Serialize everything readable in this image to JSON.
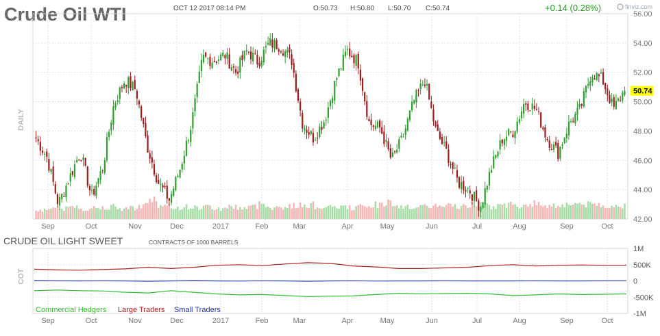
{
  "header": {
    "title": "Crude Oil WTI",
    "date": "OCT 12 2017 08:14 PM",
    "open": "O:50.73",
    "high": "H:50.80",
    "low": "L:50.70",
    "close": "C:50.74",
    "change": "+0.14 (0.28%)",
    "brand": "finviz.com",
    "period_label": "DAILY",
    "last_price": "50.74"
  },
  "cot": {
    "title": "CRUDE OIL LIGHT SWEET",
    "subtitle": "CONTRACTS OF 1000 BARRELS",
    "side_label": "COT",
    "legend": [
      {
        "label": "Commercial Hedgers",
        "color": "#33bb33"
      },
      {
        "label": "Large Traders",
        "color": "#aa2222"
      },
      {
        "label": "Small Traders",
        "color": "#2233aa"
      }
    ]
  },
  "colors": {
    "up": "#2e9e2e",
    "down": "#9e1b1b",
    "vol_up": "#a6dca6",
    "vol_down": "#f4b6b6",
    "grid": "#dddddd",
    "axis_text": "#777777",
    "price_tag": "#ffff00"
  },
  "chart_data": [
    {
      "type": "candlestick",
      "title": "Crude Oil WTI",
      "period": "DAILY",
      "x_tick_labels": [
        "Sep",
        "Oct",
        "Nov",
        "Dec",
        "2017",
        "Feb",
        "Mar",
        "Apr",
        "May",
        "Jun",
        "Jul",
        "Aug",
        "Sep",
        "Oct"
      ],
      "y_ticks": [
        "42.00",
        "44.00",
        "46.00",
        "48.00",
        "50.00",
        "52.00",
        "54.00",
        "56.00"
      ],
      "ylim": [
        42,
        56
      ],
      "series": [
        {
          "name": "price",
          "values": [
            47.5,
            46.2,
            43.0,
            44.8,
            46.6,
            43.5,
            45.5,
            49.8,
            51.5,
            50.8,
            47.0,
            44.5,
            43.3,
            45.5,
            48.5,
            53.0,
            52.8,
            53.2,
            52.0,
            53.5,
            52.7,
            54.0,
            53.8,
            52.9,
            48.5,
            47.5,
            48.8,
            51.5,
            53.5,
            52.7,
            48.5,
            48.2,
            46.0,
            47.5,
            50.0,
            51.5,
            48.0,
            46.5,
            44.5,
            44.0,
            42.8,
            45.5,
            47.5,
            48.0,
            50.0,
            49.5,
            47.5,
            46.5,
            48.5,
            49.5,
            52.0,
            51.5,
            49.5,
            50.8
          ]
        }
      ],
      "last_value": 50.74,
      "grid": true
    },
    {
      "type": "bar",
      "title": "volume",
      "series": [
        {
          "name": "volume",
          "values": [
            0.45,
            0.55,
            0.5,
            0.6,
            0.5,
            0.55,
            0.6,
            0.5,
            0.55,
            0.65,
            0.95,
            0.6,
            0.55,
            0.6,
            0.55,
            0.6,
            0.5,
            0.6,
            0.55,
            0.6,
            0.75,
            0.55,
            0.6,
            0.65,
            0.7,
            0.6,
            0.55,
            0.6,
            0.55,
            0.6,
            0.7,
            0.8,
            0.55,
            0.6,
            0.55,
            0.65,
            0.6,
            0.65,
            0.6,
            0.7,
            0.85,
            0.6,
            0.7,
            0.65,
            0.75,
            0.7,
            0.65,
            0.7,
            0.75,
            0.7,
            0.7,
            0.65,
            0.6,
            0.65
          ]
        }
      ]
    },
    {
      "type": "line",
      "title": "CRUDE OIL LIGHT SWEET",
      "subtitle": "CONTRACTS OF 1000 BARRELS",
      "x_tick_labels": [
        "Sep",
        "Oct",
        "Nov",
        "Dec",
        "2017",
        "Feb",
        "Mar",
        "Apr",
        "May",
        "Jun",
        "Jul",
        "Aug",
        "Sep",
        "Oct"
      ],
      "y_ticks": [
        "1M",
        "500K",
        "0",
        "-500K",
        "-1M"
      ],
      "ylim": [
        -1000,
        1000
      ],
      "series": [
        {
          "name": "Commercial Hedgers",
          "values": [
            -300,
            -280,
            -300,
            -310,
            -350,
            -370,
            -300,
            -350,
            -400,
            -430,
            -420,
            -450,
            -480,
            -470,
            -460,
            -420,
            -380,
            -400,
            -390,
            -380,
            -400,
            -450,
            -430,
            -400,
            -420,
            -410,
            -400
          ]
        },
        {
          "name": "Large Traders",
          "values": [
            360,
            340,
            330,
            350,
            370,
            420,
            380,
            420,
            480,
            500,
            470,
            520,
            560,
            540,
            460,
            430,
            380,
            380,
            400,
            420,
            470,
            500,
            460,
            480,
            490,
            480,
            480
          ]
        },
        {
          "name": "Small Traders",
          "values": [
            10,
            5,
            0,
            5,
            0,
            -10,
            0,
            10,
            0,
            -5,
            5,
            0,
            -10,
            0,
            5,
            -5,
            0,
            0,
            5,
            0,
            0,
            0,
            5,
            0,
            0,
            5,
            5
          ]
        }
      ],
      "grid": true
    }
  ]
}
